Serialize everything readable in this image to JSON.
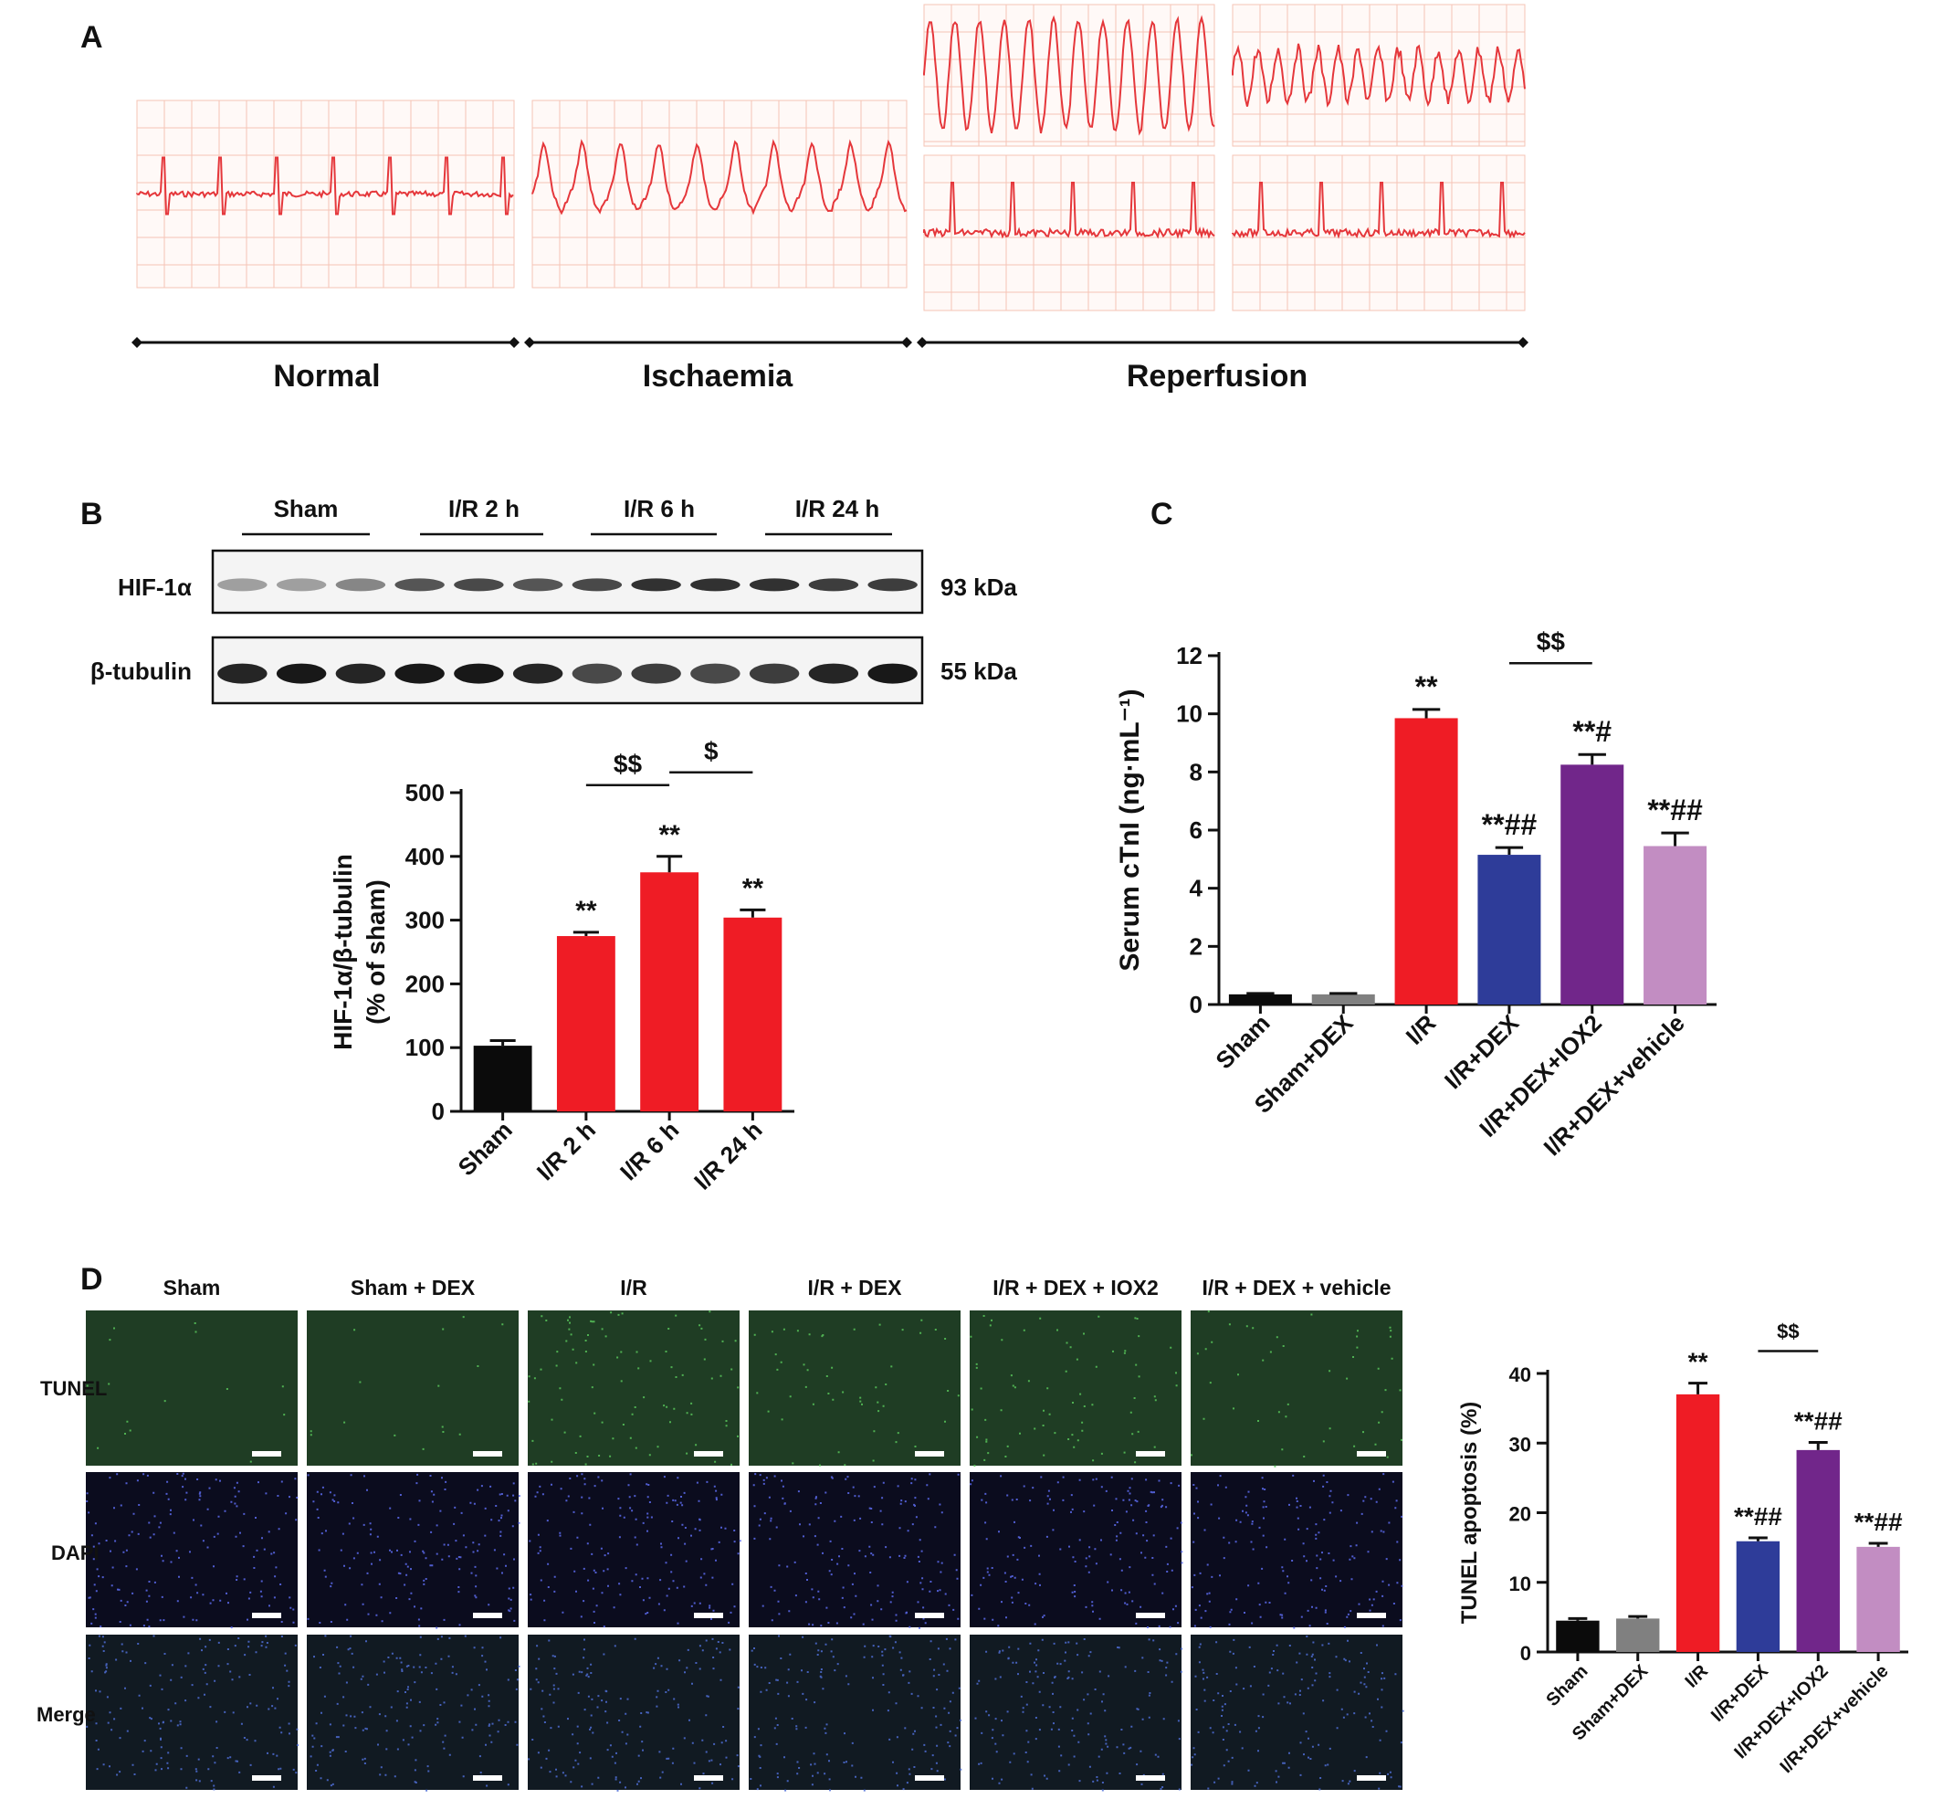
{
  "panel_labels": {
    "a": "A",
    "b": "B",
    "c": "C",
    "d": "D"
  },
  "ecg": {
    "phases": [
      "Normal",
      "Ischaemia",
      "Reperfusion"
    ],
    "trace_color": "#e5373b",
    "grid_color": "#f6c4b6"
  },
  "western_blot": {
    "groups": [
      "Sham",
      "I/R 2 h",
      "I/R 6 h",
      "I/R 24 h"
    ],
    "rows": [
      {
        "protein": "HIF-1α",
        "size": "93 kDa"
      },
      {
        "protein": "β-tubulin",
        "size": "55 kDa"
      }
    ]
  },
  "tunel_images": {
    "columns": [
      "Sham",
      "Sham + DEX",
      "I/R",
      "I/R + DEX",
      "I/R + DEX + IOX2",
      "I/R + DEX + vehicle"
    ],
    "rows": [
      "TUNEL",
      "DAPI",
      "Merge"
    ]
  },
  "chart_data": [
    {
      "id": "B",
      "type": "bar",
      "categories": [
        "Sham",
        "I/R 2 h",
        "I/R 6 h",
        "I/R 24 h"
      ],
      "values": [
        103,
        275,
        375,
        304
      ],
      "errors": [
        8,
        6,
        25,
        12
      ],
      "colors": [
        "#0b0b0b",
        "#ef1c25",
        "#ef1c25",
        "#ef1c25"
      ],
      "ylabel": [
        "HIF-1α/β-tubulin",
        "(% of sham)"
      ],
      "ylim": [
        0,
        500
      ],
      "yticks": [
        0,
        100,
        200,
        300,
        400,
        500
      ],
      "annotations": [
        "",
        "**",
        "**",
        "**"
      ],
      "comparisons": [
        {
          "from": 1,
          "to": 2,
          "label": "$$"
        },
        {
          "from": 2,
          "to": 3,
          "label": "$"
        }
      ]
    },
    {
      "id": "C",
      "type": "bar",
      "categories": [
        "Sham",
        "Sham+DEX",
        "I/R",
        "I/R+DEX",
        "I/R+DEX+IOX2",
        "I/R+DEX+vehicle"
      ],
      "values": [
        0.35,
        0.35,
        9.85,
        5.15,
        8.25,
        5.45
      ],
      "errors": [
        0.03,
        0.03,
        0.3,
        0.25,
        0.35,
        0.45
      ],
      "colors": [
        "#0b0b0b",
        "#808080",
        "#ef1c25",
        "#2e3c99",
        "#71268a",
        "#c28dc2"
      ],
      "ylabel": "Serum cTnI (ng·mL⁻¹)",
      "ylim": [
        0,
        12
      ],
      "yticks": [
        0,
        2,
        4,
        6,
        8,
        10,
        12
      ],
      "annotations": [
        "",
        "",
        "**",
        "**##",
        "**#",
        "**##"
      ],
      "comparisons": [
        {
          "from": 3,
          "to": 4,
          "label": "$$"
        }
      ]
    },
    {
      "id": "D",
      "type": "bar",
      "categories": [
        "Sham",
        "Sham+DEX",
        "I/R",
        "I/R+DEX",
        "I/R+DEX+IOX2",
        "I/R+DEX+vehicle"
      ],
      "values": [
        4.5,
        4.8,
        37.0,
        15.9,
        29.0,
        15.1
      ],
      "errors": [
        0.3,
        0.3,
        1.6,
        0.5,
        1.1,
        0.5
      ],
      "colors": [
        "#0b0b0b",
        "#808080",
        "#ef1c25",
        "#2e3c99",
        "#71268a",
        "#c28dc2"
      ],
      "ylabel": "TUNEL apoptosis (%)",
      "ylim": [
        0,
        40
      ],
      "yticks": [
        0,
        10,
        20,
        30,
        40
      ],
      "annotations": [
        "",
        "",
        "**",
        "**##",
        "**##",
        "**##"
      ],
      "comparisons": [
        {
          "from": 3,
          "to": 4,
          "label": "$$"
        }
      ]
    }
  ]
}
